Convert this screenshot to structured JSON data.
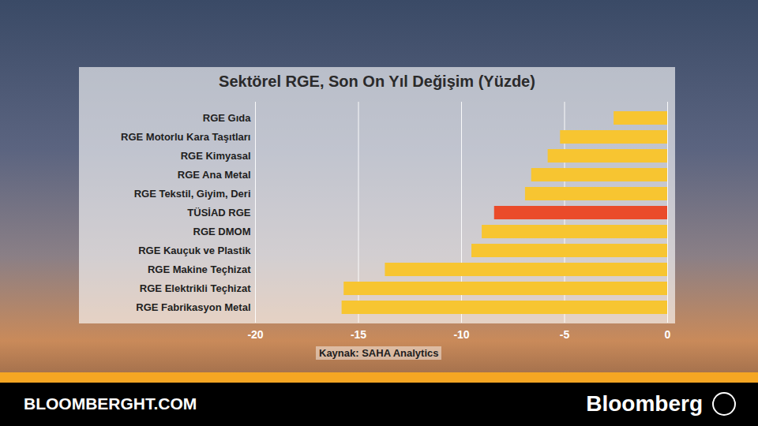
{
  "chart_data": {
    "type": "bar",
    "orientation": "horizontal",
    "title": "Sektörel RGE, Son On Yıl Değişim (Yüzde)",
    "caption": "Kaynak: SAHA Analytics",
    "categories": [
      "RGE Gıda",
      "RGE Motorlu Kara Taşıtları",
      "RGE Kimyasal",
      "RGE Ana Metal",
      "RGE Tekstil, Giyim, Deri",
      "TÜSİAD RGE",
      "RGE DMOM",
      "RGE Kauçuk ve Plastik",
      "RGE Makine Teçhizat",
      "RGE Elektrikli Teçhizat",
      "RGE Fabrikasyon Metal"
    ],
    "values": [
      -2.6,
      -5.2,
      -5.8,
      -6.6,
      -6.9,
      -8.4,
      -9.0,
      -9.5,
      -13.7,
      -15.7,
      -15.8
    ],
    "colors": [
      "#f7c531",
      "#f7c531",
      "#f7c531",
      "#f7c531",
      "#f7c531",
      "#ea4b2a",
      "#f7c531",
      "#f7c531",
      "#f7c531",
      "#f7c531",
      "#f7c531"
    ],
    "xlim": [
      -20,
      0
    ],
    "xticks": [
      -20,
      -15,
      -10,
      -5,
      0
    ],
    "grid": true
  },
  "footer": {
    "site": "BLOOMBERGHT.COM",
    "brand": "Bloomberg"
  }
}
